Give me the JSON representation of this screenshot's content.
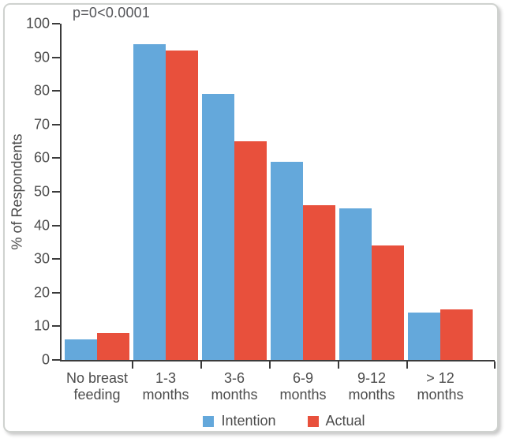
{
  "figure": {
    "annotation": "p=0<0.0001"
  },
  "colors": {
    "intention_blue": "#64A8DB",
    "actual_red": "#E8503C",
    "axis": "#3b3b3b",
    "text": "#4c4c4c",
    "card_border": "#cfd2cf"
  },
  "chart_data": {
    "type": "bar",
    "title": "",
    "annotation": "p=0<0.0001",
    "categories": [
      "No breast\nfeeding",
      "1-3\nmonths",
      "3-6\nmonths",
      "6-9\nmonths",
      "9-12\nmonths",
      "> 12\nmonths"
    ],
    "series": [
      {
        "name": "Intention",
        "color": "#64A8DB",
        "values": [
          6,
          94,
          79,
          59,
          45,
          14
        ]
      },
      {
        "name": "Actual",
        "color": "#E8503C",
        "values": [
          8,
          92,
          65,
          46,
          34,
          15
        ]
      }
    ],
    "xlabel": "",
    "ylabel": "% of Respondents",
    "ylim": [
      0,
      100
    ],
    "ytick_step": 10,
    "grid": false,
    "legend_position": "bottom"
  }
}
